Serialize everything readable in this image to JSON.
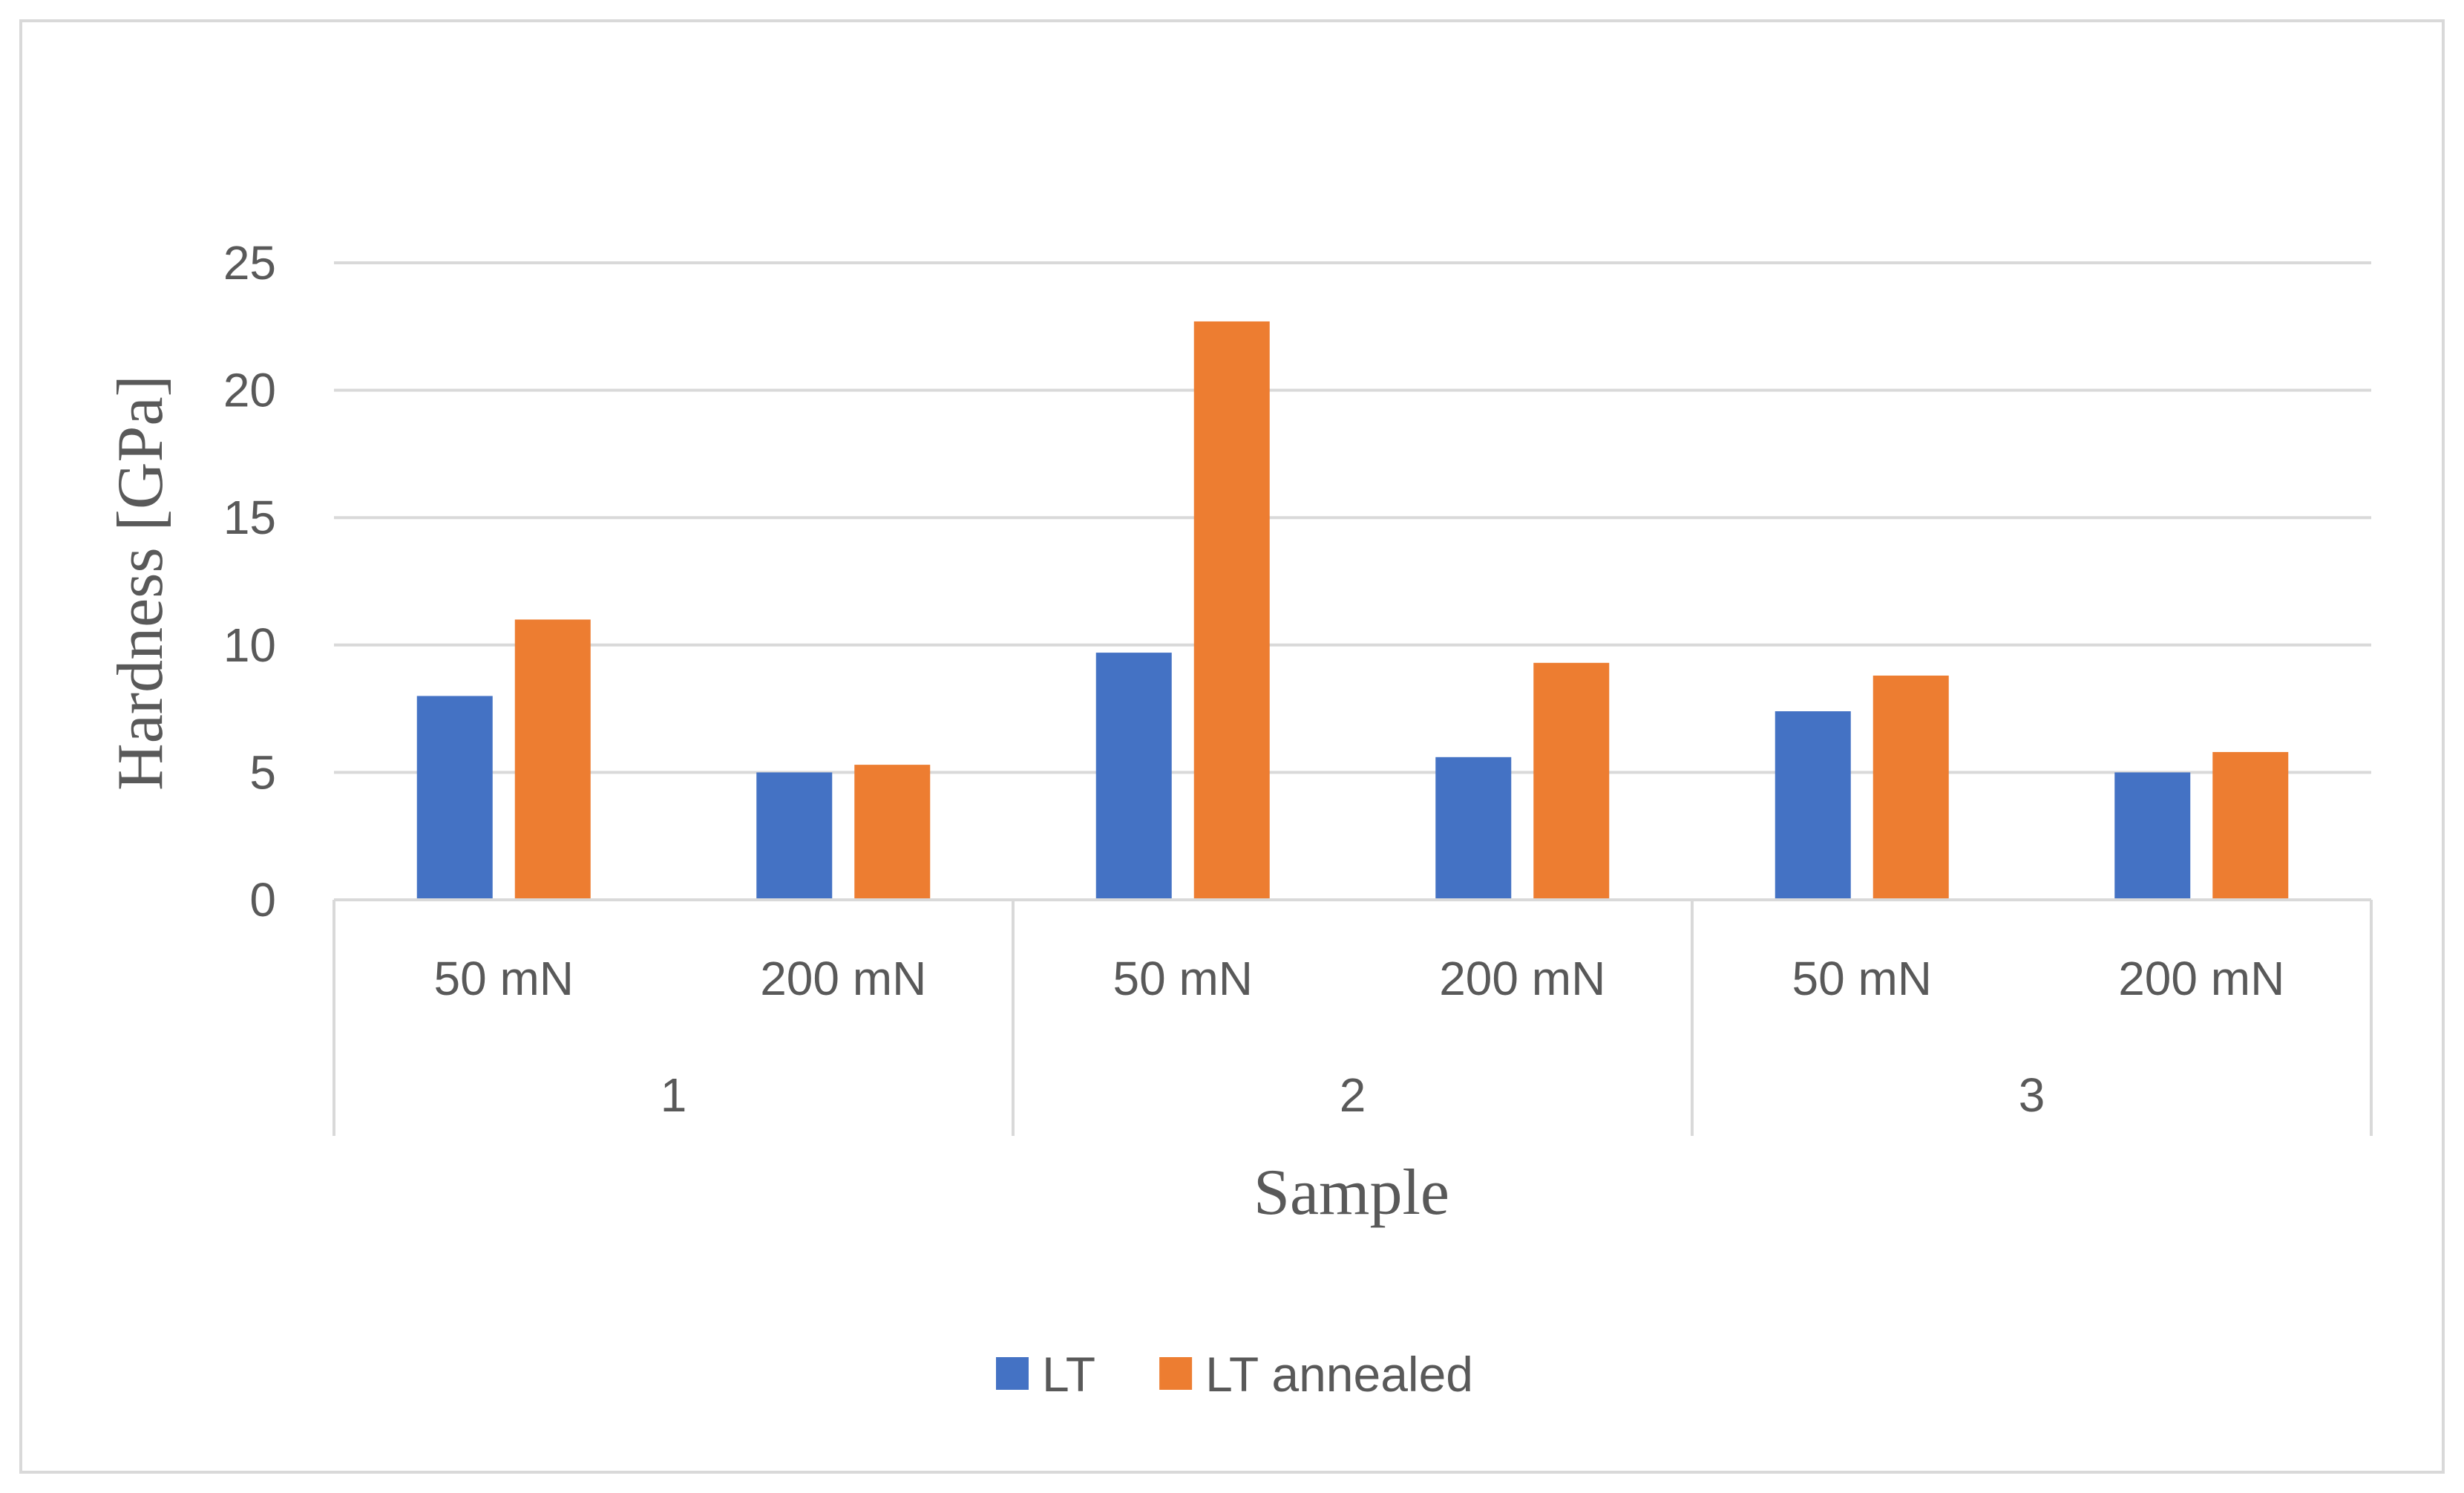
{
  "chart_data": {
    "type": "bar",
    "title": "",
    "xlabel": "Sample",
    "ylabel": "Hardness [GPa]",
    "ylim": [
      0,
      25
    ],
    "yticks": [
      "0",
      "5",
      "10",
      "15",
      "20",
      "25"
    ],
    "grid": true,
    "legend_position": "bottom",
    "groups": [
      {
        "label": "1",
        "categories": [
          "50 mN",
          "200 mN"
        ]
      },
      {
        "label": "2",
        "categories": [
          "50 mN",
          "200 mN"
        ]
      },
      {
        "label": "3",
        "categories": [
          "50 mN",
          "200 mN"
        ]
      }
    ],
    "series": [
      {
        "name": "LT",
        "color": "#4472C4",
        "values": [
          8.0,
          5.0,
          9.7,
          5.6,
          7.4,
          5.0
        ]
      },
      {
        "name": "LT annealed",
        "color": "#ED7D31",
        "values": [
          11.0,
          5.3,
          22.7,
          9.3,
          8.8,
          5.8
        ]
      }
    ]
  }
}
